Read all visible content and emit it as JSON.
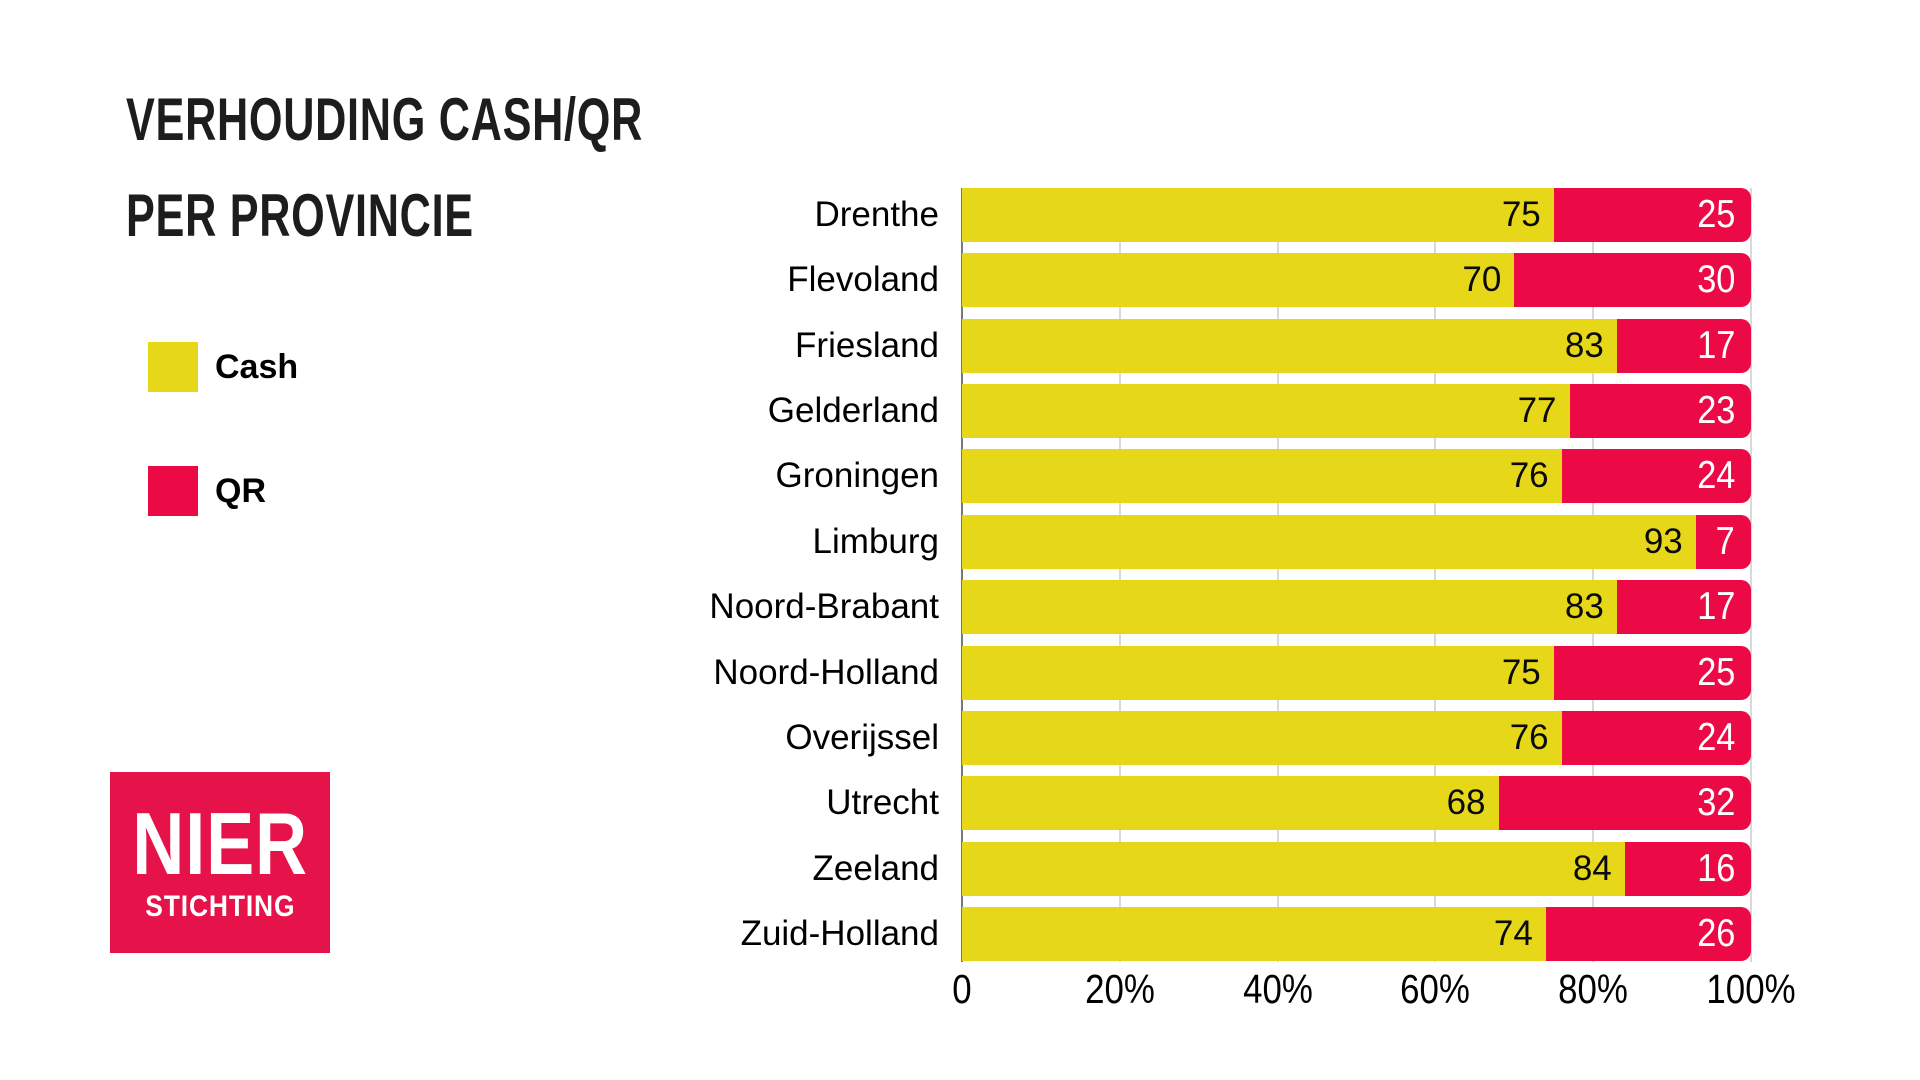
{
  "title": {
    "line1": "VERHOUDING CASH/QR",
    "line2": "PER PROVINCIE"
  },
  "legend": [
    {
      "label": "Cash",
      "color": "#E6D719"
    },
    {
      "label": "QR",
      "color": "#EB0A46"
    }
  ],
  "logo": {
    "line1": "NIER",
    "line2": "STICHTING",
    "bg": "#E5134A",
    "text_color": "#FFFFFF"
  },
  "colors": {
    "cash": "#E6D719",
    "qr": "#EB0A46",
    "gridline": "#D9D9D9",
    "zero_line": "#777777",
    "title_text": "#1D1D1B",
    "background": "#FFFFFF"
  },
  "chart_data": {
    "type": "bar",
    "stacked": true,
    "orientation": "horizontal",
    "title": "Verhouding Cash/QR per provincie",
    "categories": [
      "Drenthe",
      "Flevoland",
      "Friesland",
      "Gelderland",
      "Groningen",
      "Limburg",
      "Noord-Brabant",
      "Noord-Holland",
      "Overijssel",
      "Utrecht",
      "Zeeland",
      "Zuid-Holland"
    ],
    "series": [
      {
        "name": "Cash",
        "color": "#E6D719",
        "values": [
          75,
          70,
          83,
          77,
          76,
          93,
          83,
          75,
          76,
          68,
          84,
          74
        ]
      },
      {
        "name": "QR",
        "color": "#EB0A46",
        "values": [
          25,
          30,
          17,
          23,
          24,
          7,
          17,
          25,
          24,
          32,
          16,
          26
        ]
      }
    ],
    "xlim": [
      0,
      100
    ],
    "x_tick_values": [
      0,
      20,
      40,
      60,
      80,
      100
    ],
    "x_tick_labels": [
      "0",
      "20%",
      "40%",
      "60%",
      "80%",
      "100%"
    ],
    "xlabel": "",
    "ylabel": "",
    "grid": true,
    "value_labels": "inside-end",
    "legend_position": "left"
  }
}
